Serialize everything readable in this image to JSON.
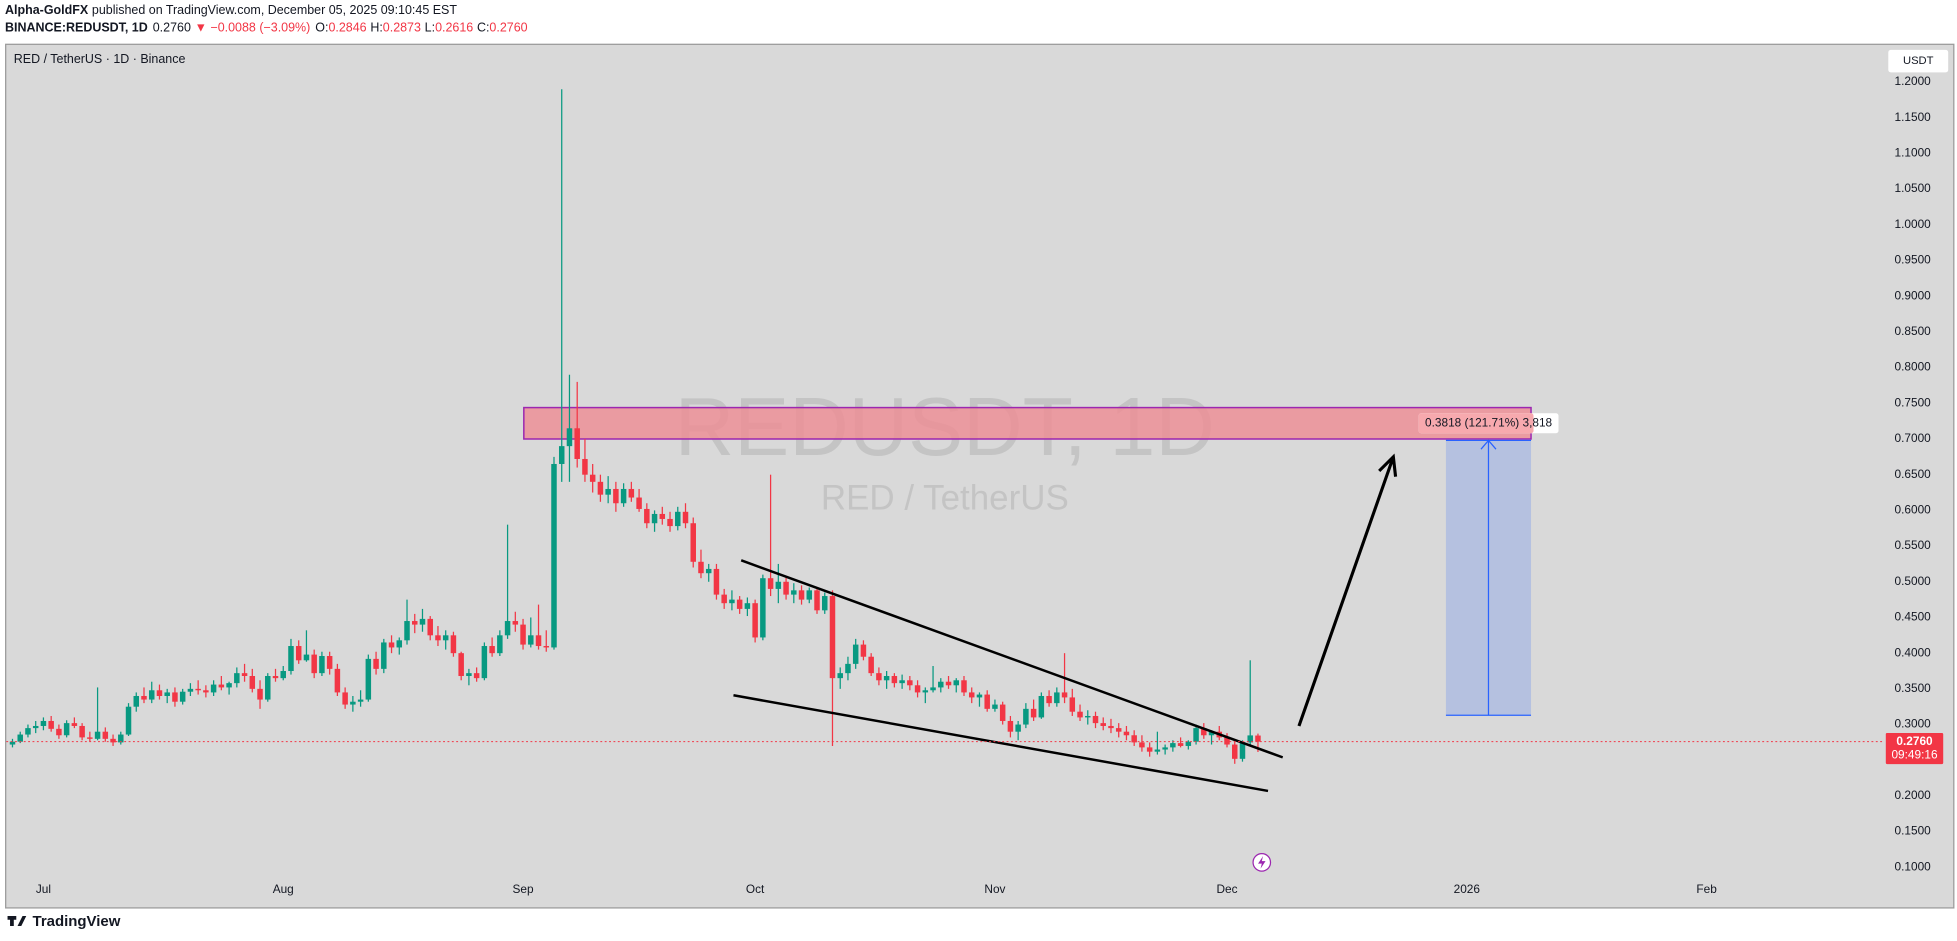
{
  "header": {
    "author": "Alpha-GoldFX",
    "published": "published on TradingView.com, December 05, 2025 09:10:45 EST"
  },
  "quote": {
    "symbol": "BINANCE:REDUSDT, 1D",
    "last": "0.2760",
    "change": "▼ −0.0088 (−3.09%)",
    "open_label": "O:",
    "open": "0.2846",
    "high_label": "H:",
    "high": "0.2873",
    "low_label": "L:",
    "low": "0.2616",
    "close_label": "C:",
    "close": "0.2760"
  },
  "footer": {
    "brand": "TradingView"
  },
  "chart_data": {
    "type": "candlestick",
    "title": "RED / TetherUS · 1D · Binance",
    "watermark": "REDUSDT, 1D",
    "watermark_sub": "RED / TetherUS",
    "currency": "USDT",
    "up_color": "#089981",
    "down_color": "#f23645",
    "grid": false,
    "xlim": [
      -0.8,
      242
    ],
    "xticks": [
      {
        "value": 4,
        "label": "Jul"
      },
      {
        "value": 35,
        "label": "Aug"
      },
      {
        "value": 66,
        "label": "Sep"
      },
      {
        "value": 96,
        "label": "Oct"
      },
      {
        "value": 127,
        "label": "Nov"
      },
      {
        "value": 157,
        "label": "Dec"
      },
      {
        "value": 188,
        "label": "2026"
      },
      {
        "value": 219,
        "label": "Feb"
      }
    ],
    "ylim": [
      0.044,
      1.252
    ],
    "yticks": [
      {
        "value": 0.1,
        "label": "0.1000"
      },
      {
        "value": 0.15,
        "label": "0.1500"
      },
      {
        "value": 0.2,
        "label": "0.2000"
      },
      {
        "value": 0.25,
        "label": "0.2500"
      },
      {
        "value": 0.3,
        "label": "0.3000"
      },
      {
        "value": 0.35,
        "label": "0.3500"
      },
      {
        "value": 0.4,
        "label": "0.4000"
      },
      {
        "value": 0.45,
        "label": "0.4500"
      },
      {
        "value": 0.5,
        "label": "0.5000"
      },
      {
        "value": 0.55,
        "label": "0.5500"
      },
      {
        "value": 0.6,
        "label": "0.6000"
      },
      {
        "value": 0.65,
        "label": "0.6500"
      },
      {
        "value": 0.7,
        "label": "0.7000"
      },
      {
        "value": 0.75,
        "label": "0.7500"
      },
      {
        "value": 0.8,
        "label": "0.8000"
      },
      {
        "value": 0.85,
        "label": "0.8500"
      },
      {
        "value": 0.9,
        "label": "0.9000"
      },
      {
        "value": 0.95,
        "label": "0.9500"
      },
      {
        "value": 1.0,
        "label": "1.0000"
      },
      {
        "value": 1.05,
        "label": "1.0500"
      },
      {
        "value": 1.1,
        "label": "1.1000"
      },
      {
        "value": 1.15,
        "label": "1.1500"
      },
      {
        "value": 1.2,
        "label": "1.2000"
      }
    ],
    "last_price": {
      "value": 0.276,
      "label": "0.2760"
    },
    "countdown": "09:49:16",
    "ohlc": [
      [
        0.272,
        0.28,
        0.268,
        0.276
      ],
      [
        0.276,
        0.29,
        0.274,
        0.286
      ],
      [
        0.286,
        0.3,
        0.282,
        0.295
      ],
      [
        0.295,
        0.305,
        0.288,
        0.298
      ],
      [
        0.298,
        0.31,
        0.292,
        0.305
      ],
      [
        0.305,
        0.312,
        0.29,
        0.294
      ],
      [
        0.294,
        0.3,
        0.28,
        0.285
      ],
      [
        0.285,
        0.306,
        0.282,
        0.302
      ],
      [
        0.302,
        0.31,
        0.295,
        0.298
      ],
      [
        0.298,
        0.302,
        0.278,
        0.282
      ],
      [
        0.282,
        0.29,
        0.276,
        0.28
      ],
      [
        0.28,
        0.352,
        0.278,
        0.29
      ],
      [
        0.29,
        0.296,
        0.276,
        0.28
      ],
      [
        0.28,
        0.286,
        0.27,
        0.275
      ],
      [
        0.275,
        0.29,
        0.272,
        0.286
      ],
      [
        0.286,
        0.33,
        0.284,
        0.325
      ],
      [
        0.325,
        0.345,
        0.318,
        0.34
      ],
      [
        0.34,
        0.352,
        0.33,
        0.335
      ],
      [
        0.335,
        0.36,
        0.33,
        0.348
      ],
      [
        0.348,
        0.356,
        0.335,
        0.34
      ],
      [
        0.34,
        0.35,
        0.33,
        0.345
      ],
      [
        0.345,
        0.352,
        0.325,
        0.332
      ],
      [
        0.332,
        0.35,
        0.328,
        0.346
      ],
      [
        0.346,
        0.358,
        0.34,
        0.35
      ],
      [
        0.35,
        0.362,
        0.342,
        0.348
      ],
      [
        0.348,
        0.355,
        0.338,
        0.345
      ],
      [
        0.345,
        0.362,
        0.34,
        0.356
      ],
      [
        0.356,
        0.368,
        0.348,
        0.352
      ],
      [
        0.352,
        0.36,
        0.342,
        0.358
      ],
      [
        0.358,
        0.38,
        0.352,
        0.372
      ],
      [
        0.372,
        0.385,
        0.36,
        0.368
      ],
      [
        0.368,
        0.378,
        0.345,
        0.35
      ],
      [
        0.35,
        0.362,
        0.322,
        0.335
      ],
      [
        0.335,
        0.372,
        0.332,
        0.368
      ],
      [
        0.368,
        0.378,
        0.36,
        0.365
      ],
      [
        0.365,
        0.382,
        0.362,
        0.375
      ],
      [
        0.375,
        0.42,
        0.37,
        0.41
      ],
      [
        0.41,
        0.418,
        0.385,
        0.39
      ],
      [
        0.39,
        0.432,
        0.388,
        0.398
      ],
      [
        0.398,
        0.405,
        0.365,
        0.372
      ],
      [
        0.372,
        0.402,
        0.368,
        0.396
      ],
      [
        0.396,
        0.402,
        0.37,
        0.378
      ],
      [
        0.378,
        0.385,
        0.34,
        0.345
      ],
      [
        0.345,
        0.352,
        0.322,
        0.328
      ],
      [
        0.328,
        0.34,
        0.318,
        0.332
      ],
      [
        0.332,
        0.348,
        0.325,
        0.335
      ],
      [
        0.335,
        0.398,
        0.332,
        0.392
      ],
      [
        0.392,
        0.402,
        0.37,
        0.378
      ],
      [
        0.378,
        0.42,
        0.372,
        0.415
      ],
      [
        0.415,
        0.425,
        0.4,
        0.408
      ],
      [
        0.408,
        0.422,
        0.398,
        0.418
      ],
      [
        0.418,
        0.475,
        0.412,
        0.445
      ],
      [
        0.445,
        0.455,
        0.428,
        0.44
      ],
      [
        0.44,
        0.462,
        0.43,
        0.448
      ],
      [
        0.448,
        0.452,
        0.418,
        0.425
      ],
      [
        0.425,
        0.438,
        0.41,
        0.418
      ],
      [
        0.418,
        0.432,
        0.405,
        0.425
      ],
      [
        0.425,
        0.43,
        0.395,
        0.4
      ],
      [
        0.4,
        0.402,
        0.362,
        0.368
      ],
      [
        0.368,
        0.378,
        0.355,
        0.372
      ],
      [
        0.372,
        0.38,
        0.36,
        0.365
      ],
      [
        0.365,
        0.415,
        0.362,
        0.41
      ],
      [
        0.41,
        0.422,
        0.395,
        0.4
      ],
      [
        0.4,
        0.432,
        0.396,
        0.425
      ],
      [
        0.425,
        0.58,
        0.42,
        0.445
      ],
      [
        0.445,
        0.458,
        0.43,
        0.44
      ],
      [
        0.44,
        0.448,
        0.405,
        0.412
      ],
      [
        0.412,
        0.45,
        0.408,
        0.425
      ],
      [
        0.425,
        0.468,
        0.405,
        0.41
      ],
      [
        0.41,
        0.432,
        0.402,
        0.408
      ],
      [
        0.408,
        0.675,
        0.405,
        0.665
      ],
      [
        0.665,
        1.19,
        0.64,
        0.69
      ],
      [
        0.69,
        0.79,
        0.64,
        0.715
      ],
      [
        0.715,
        0.78,
        0.66,
        0.672
      ],
      [
        0.672,
        0.7,
        0.64,
        0.65
      ],
      [
        0.65,
        0.665,
        0.625,
        0.64
      ],
      [
        0.64,
        0.65,
        0.612,
        0.622
      ],
      [
        0.622,
        0.648,
        0.61,
        0.63
      ],
      [
        0.63,
        0.64,
        0.598,
        0.61
      ],
      [
        0.61,
        0.638,
        0.605,
        0.63
      ],
      [
        0.63,
        0.64,
        0.612,
        0.618
      ],
      [
        0.618,
        0.63,
        0.598,
        0.602
      ],
      [
        0.602,
        0.61,
        0.575,
        0.582
      ],
      [
        0.582,
        0.6,
        0.57,
        0.595
      ],
      [
        0.595,
        0.605,
        0.58,
        0.588
      ],
      [
        0.588,
        0.598,
        0.57,
        0.578
      ],
      [
        0.578,
        0.605,
        0.572,
        0.598
      ],
      [
        0.598,
        0.61,
        0.575,
        0.582
      ],
      [
        0.582,
        0.59,
        0.52,
        0.528
      ],
      [
        0.528,
        0.545,
        0.505,
        0.512
      ],
      [
        0.512,
        0.525,
        0.5,
        0.518
      ],
      [
        0.518,
        0.525,
        0.475,
        0.482
      ],
      [
        0.482,
        0.49,
        0.462,
        0.47
      ],
      [
        0.47,
        0.488,
        0.46,
        0.475
      ],
      [
        0.475,
        0.48,
        0.455,
        0.462
      ],
      [
        0.462,
        0.478,
        0.452,
        0.47
      ],
      [
        0.47,
        0.475,
        0.415,
        0.422
      ],
      [
        0.422,
        0.51,
        0.418,
        0.505
      ],
      [
        0.505,
        0.65,
        0.48,
        0.49
      ],
      [
        0.49,
        0.525,
        0.47,
        0.5
      ],
      [
        0.5,
        0.508,
        0.475,
        0.482
      ],
      [
        0.482,
        0.498,
        0.47,
        0.488
      ],
      [
        0.488,
        0.495,
        0.468,
        0.475
      ],
      [
        0.475,
        0.492,
        0.47,
        0.488
      ],
      [
        0.488,
        0.492,
        0.455,
        0.46
      ],
      [
        0.46,
        0.485,
        0.455,
        0.48
      ],
      [
        0.48,
        0.488,
        0.27,
        0.365
      ],
      [
        0.365,
        0.38,
        0.35,
        0.372
      ],
      [
        0.372,
        0.395,
        0.362,
        0.385
      ],
      [
        0.385,
        0.42,
        0.378,
        0.412
      ],
      [
        0.412,
        0.418,
        0.39,
        0.395
      ],
      [
        0.395,
        0.4,
        0.368,
        0.372
      ],
      [
        0.372,
        0.38,
        0.355,
        0.362
      ],
      [
        0.362,
        0.375,
        0.35,
        0.368
      ],
      [
        0.368,
        0.372,
        0.352,
        0.358
      ],
      [
        0.358,
        0.37,
        0.35,
        0.362
      ],
      [
        0.362,
        0.368,
        0.348,
        0.355
      ],
      [
        0.355,
        0.362,
        0.338,
        0.345
      ],
      [
        0.345,
        0.352,
        0.33,
        0.348
      ],
      [
        0.348,
        0.382,
        0.345,
        0.352
      ],
      [
        0.352,
        0.365,
        0.345,
        0.36
      ],
      [
        0.36,
        0.368,
        0.35,
        0.355
      ],
      [
        0.355,
        0.365,
        0.345,
        0.362
      ],
      [
        0.362,
        0.368,
        0.34,
        0.345
      ],
      [
        0.345,
        0.352,
        0.33,
        0.338
      ],
      [
        0.338,
        0.345,
        0.325,
        0.342
      ],
      [
        0.342,
        0.348,
        0.318,
        0.322
      ],
      [
        0.322,
        0.335,
        0.318,
        0.328
      ],
      [
        0.328,
        0.332,
        0.3,
        0.305
      ],
      [
        0.305,
        0.312,
        0.282,
        0.29
      ],
      [
        0.29,
        0.305,
        0.278,
        0.3
      ],
      [
        0.3,
        0.33,
        0.295,
        0.322
      ],
      [
        0.322,
        0.335,
        0.305,
        0.31
      ],
      [
        0.31,
        0.345,
        0.308,
        0.34
      ],
      [
        0.34,
        0.348,
        0.325,
        0.33
      ],
      [
        0.33,
        0.352,
        0.325,
        0.345
      ],
      [
        0.345,
        0.4,
        0.33,
        0.338
      ],
      [
        0.338,
        0.35,
        0.312,
        0.318
      ],
      [
        0.318,
        0.328,
        0.305,
        0.31
      ],
      [
        0.31,
        0.32,
        0.3,
        0.312
      ],
      [
        0.312,
        0.318,
        0.295,
        0.302
      ],
      [
        0.302,
        0.31,
        0.292,
        0.298
      ],
      [
        0.298,
        0.308,
        0.288,
        0.295
      ],
      [
        0.295,
        0.302,
        0.282,
        0.29
      ],
      [
        0.29,
        0.298,
        0.278,
        0.285
      ],
      [
        0.285,
        0.292,
        0.27,
        0.275
      ],
      [
        0.275,
        0.285,
        0.262,
        0.268
      ],
      [
        0.268,
        0.275,
        0.255,
        0.262
      ],
      [
        0.262,
        0.29,
        0.258,
        0.265
      ],
      [
        0.265,
        0.272,
        0.258,
        0.268
      ],
      [
        0.268,
        0.278,
        0.262,
        0.274
      ],
      [
        0.274,
        0.282,
        0.268,
        0.27
      ],
      [
        0.27,
        0.278,
        0.265,
        0.276
      ],
      [
        0.276,
        0.3,
        0.272,
        0.295
      ],
      [
        0.295,
        0.302,
        0.28,
        0.285
      ],
      [
        0.285,
        0.292,
        0.272,
        0.29
      ],
      [
        0.29,
        0.298,
        0.278,
        0.282
      ],
      [
        0.282,
        0.288,
        0.268,
        0.272
      ],
      [
        0.272,
        0.276,
        0.245,
        0.252
      ],
      [
        0.252,
        0.278,
        0.248,
        0.275
      ],
      [
        0.275,
        0.39,
        0.272,
        0.2848
      ],
      [
        0.2846,
        0.2873,
        0.2616,
        0.276
      ]
    ],
    "drawings": {
      "zone": {
        "x": [
          66.1,
          196.3
        ],
        "y": [
          0.7,
          0.744
        ],
        "color": "#ec8f96",
        "border": "#9c27b0"
      },
      "measure": {
        "x": [
          185.3,
          196.3
        ],
        "y": [
          0.313,
          0.698
        ],
        "color": "#2962ff",
        "label": "0.3818 (121.71%) 3,818"
      },
      "wedge_upper": {
        "x": [
          94.2,
          164.2
        ],
        "y": [
          0.53,
          0.254
        ],
        "color": "#000000"
      },
      "wedge_lower": {
        "x": [
          93.2,
          162.3
        ],
        "y": [
          0.341,
          0.207
        ],
        "color": "#000000"
      },
      "arrow": {
        "x": [
          166.3,
          178.5
        ],
        "y": [
          0.298,
          0.675
        ],
        "color": "#000000"
      }
    }
  }
}
